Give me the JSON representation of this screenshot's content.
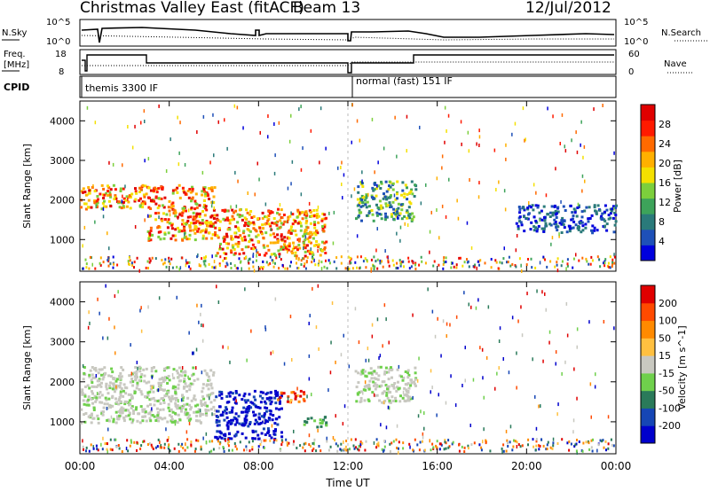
{
  "header": {
    "station": "Christmas Valley East (fitACF)",
    "beam": "Beam 13",
    "date": "12/Jul/2012"
  },
  "control_panels": {
    "nsky_label": "N.Sky",
    "nsky_ticks": [
      "10^5",
      "10^0"
    ],
    "nsearch_label": "N.Search",
    "nsearch_ticks": [
      "10^5",
      "10^0"
    ],
    "freq_label_1": "Freq.",
    "freq_label_2": "[MHz]",
    "freq_ticks": [
      "18",
      "8"
    ],
    "nave_label": "Nave",
    "nave_ticks": [
      "60",
      "0"
    ],
    "cpid_label": "CPID",
    "cpid_modes": [
      "themis 3300 IF",
      "normal (fast) 151 IF"
    ]
  },
  "chart_data": [
    {
      "type": "heatmap",
      "name": "power_panel",
      "ylabel": "Slant Range [km]",
      "xlabel": "",
      "yticks": [
        "4000",
        "3000",
        "2000",
        "1000"
      ],
      "ylim": [
        200,
        4500
      ],
      "xlim": [
        0,
        24
      ],
      "colorbar": {
        "label": "Power [dB]",
        "ticks": [
          "28",
          "24",
          "20",
          "16",
          "12",
          "8",
          "4"
        ],
        "colors": [
          "#0000dd",
          "#1e50b8",
          "#2a7a7a",
          "#3da35a",
          "#7ccf3c",
          "#f4e000",
          "#ffb000",
          "#ff6a00",
          "#ff1a00",
          "#e00000"
        ]
      },
      "echo_regions": [
        {
          "t_start": 0.0,
          "t_end": 3.0,
          "range_start": 1800,
          "range_end": 2400,
          "level": "high"
        },
        {
          "t_start": 3.0,
          "t_end": 6.0,
          "range_start": 1000,
          "range_end": 2400,
          "level": "high"
        },
        {
          "t_start": 6.0,
          "t_end": 11.0,
          "range_start": 600,
          "range_end": 1800,
          "level": "high"
        },
        {
          "t_start": 12.3,
          "t_end": 15.0,
          "range_start": 1500,
          "range_end": 2500,
          "level": "medium"
        },
        {
          "t_start": 19.5,
          "t_end": 24.0,
          "range_start": 1200,
          "range_end": 1900,
          "level": "low"
        }
      ]
    },
    {
      "type": "heatmap",
      "name": "velocity_panel",
      "ylabel": "Slant Range [km]",
      "xlabel": "Time UT",
      "yticks": [
        "4000",
        "3000",
        "2000",
        "1000"
      ],
      "ylim": [
        200,
        4500
      ],
      "xlim": [
        0,
        24
      ],
      "xticks": [
        "00:00",
        "04:00",
        "08:00",
        "12:00",
        "16:00",
        "20:00",
        "00:00"
      ],
      "colorbar": {
        "label": "Velocity [m s^-1]",
        "ticks": [
          "200",
          "100",
          "50",
          "15",
          "-15",
          "-50",
          "-100",
          "-200"
        ],
        "colors": [
          "#0000cc",
          "#1646b5",
          "#2a7a5a",
          "#6fd04c",
          "#c8c8c0",
          "#ffc040",
          "#ff8a00",
          "#ff4a00",
          "#e00000"
        ]
      },
      "echo_regions": [
        {
          "t_start": 0.0,
          "t_end": 6.0,
          "range_start": 1000,
          "range_end": 2400,
          "level": "ground"
        },
        {
          "t_start": 6.0,
          "t_end": 9.0,
          "range_start": 600,
          "range_end": 1800,
          "level": "toward"
        },
        {
          "t_start": 8.8,
          "t_end": 10.0,
          "range_start": 1500,
          "range_end": 1800,
          "level": "away"
        },
        {
          "t_start": 10.0,
          "t_end": 11.0,
          "range_start": 900,
          "range_end": 1200,
          "level": "slow-toward"
        },
        {
          "t_start": 12.3,
          "t_end": 15.0,
          "range_start": 1500,
          "range_end": 2400,
          "level": "ground"
        }
      ]
    }
  ]
}
